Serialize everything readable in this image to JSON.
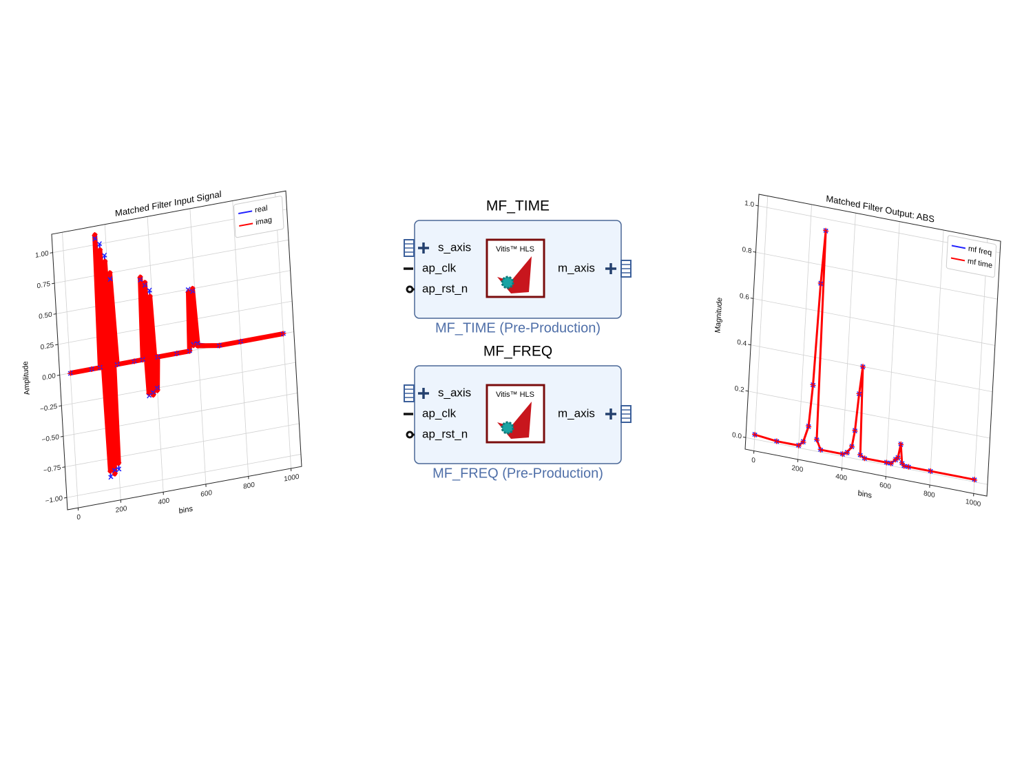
{
  "chart_data": [
    {
      "type": "line",
      "title": "Matched Filter Input Signal",
      "x_label": "bins",
      "y_label": "Amplitude",
      "x": [
        0,
        100,
        140,
        150,
        160,
        170,
        180,
        190,
        200,
        210,
        220,
        300,
        340,
        350,
        360,
        370,
        380,
        390,
        400,
        410,
        500,
        560,
        570,
        580,
        590,
        600,
        700,
        800,
        1000
      ],
      "series": [
        {
          "name": "real",
          "color": "#1f1fff",
          "marker": "x",
          "values": [
            0,
            0,
            0,
            1.05,
            -0.9,
            1.0,
            -0.85,
            0.9,
            -0.85,
            0.7,
            0,
            0,
            0,
            0.65,
            -0.3,
            0.6,
            -0.28,
            0.55,
            -0.25,
            0,
            0,
            0,
            0.5,
            0.05,
            0.48,
            0.05,
            0,
            0,
            0
          ]
        },
        {
          "name": "imag",
          "color": "#ff0000",
          "marker": "+",
          "values": [
            0,
            0,
            0,
            1.08,
            -0.85,
            0.95,
            -0.88,
            0.85,
            -0.8,
            0.75,
            0,
            0,
            0,
            0.67,
            -0.28,
            0.62,
            -0.3,
            0.5,
            -0.27,
            0,
            0,
            0,
            0.48,
            0.04,
            0.5,
            0.03,
            0,
            0,
            0
          ]
        }
      ],
      "xlim": [
        -50,
        1050
      ],
      "xticks": [
        0,
        200,
        400,
        600,
        800,
        1000
      ],
      "ylim": [
        -1.1,
        1.15
      ],
      "yticks": [
        {
          "value": -1,
          "label": "−1.00"
        },
        {
          "value": -0.75,
          "label": "−0.75"
        },
        {
          "value": -0.5,
          "label": "−0.50"
        },
        {
          "value": -0.25,
          "label": "−0.25"
        },
        {
          "value": 0,
          "label": "0.00"
        },
        {
          "value": 0.25,
          "label": "0.25"
        },
        {
          "value": 0.5,
          "label": "0.50"
        },
        {
          "value": 0.75,
          "label": "0.75"
        },
        {
          "value": 1,
          "label": "1.00"
        }
      ],
      "grid": true,
      "legend": "upper right"
    },
    {
      "type": "line",
      "title": "Matched Filter Output: ABS",
      "x_label": "bins",
      "y_label": "Magnitude",
      "x": [
        0,
        100,
        200,
        220,
        240,
        250,
        260,
        270,
        280,
        300,
        400,
        420,
        440,
        450,
        460,
        470,
        480,
        500,
        600,
        620,
        640,
        650,
        660,
        670,
        680,
        700,
        800,
        1000
      ],
      "series": [
        {
          "name": "mf freq",
          "color": "#1f1fff",
          "marker": "x",
          "values": [
            0.02,
            0.01,
            0.01,
            0.03,
            0.1,
            0.28,
            0.72,
            0.95,
            0.05,
            0.01,
            0.01,
            0.02,
            0.05,
            0.12,
            0.28,
            0.4,
            0.02,
            0.01,
            0.01,
            0.01,
            0.03,
            0.04,
            0.1,
            0.02,
            0.01,
            0.01,
            0.01,
            0.01
          ]
        },
        {
          "name": "mf time",
          "color": "#ff0000",
          "marker": "+",
          "values": [
            0.02,
            0.01,
            0.01,
            0.03,
            0.1,
            0.28,
            0.72,
            0.95,
            0.05,
            0.01,
            0.01,
            0.02,
            0.05,
            0.12,
            0.28,
            0.4,
            0.02,
            0.01,
            0.01,
            0.01,
            0.03,
            0.04,
            0.1,
            0.02,
            0.01,
            0.01,
            0.01,
            0.01
          ]
        }
      ],
      "xlim": [
        -40,
        1060
      ],
      "xticks": [
        0,
        200,
        400,
        600,
        800,
        1000
      ],
      "ylim": [
        -0.05,
        1.05
      ],
      "yticks": [
        {
          "value": 0,
          "label": "0.0"
        },
        {
          "value": 0.2,
          "label": "0.2"
        },
        {
          "value": 0.4,
          "label": "0.4"
        },
        {
          "value": 0.6,
          "label": "0.6"
        },
        {
          "value": 0.8,
          "label": "0.8"
        },
        {
          "value": 1,
          "label": "1.0"
        }
      ],
      "grid": true,
      "legend": "upper right"
    }
  ],
  "diagram": {
    "blocks": [
      {
        "title": "MF_TIME",
        "ports_left": [
          "s_axis",
          "ap_clk",
          "ap_rst_n"
        ],
        "ports_right": [
          "m_axis"
        ],
        "logo": "Vitis™ HLS",
        "caption": "MF_TIME (Pre-Production)"
      },
      {
        "title": "MF_FREQ",
        "ports_left": [
          "s_axis",
          "ap_clk",
          "ap_rst_n"
        ],
        "ports_right": [
          "m_axis"
        ],
        "logo": "Vitis™ HLS",
        "caption": "MF_FREQ (Pre-Production)"
      }
    ]
  }
}
